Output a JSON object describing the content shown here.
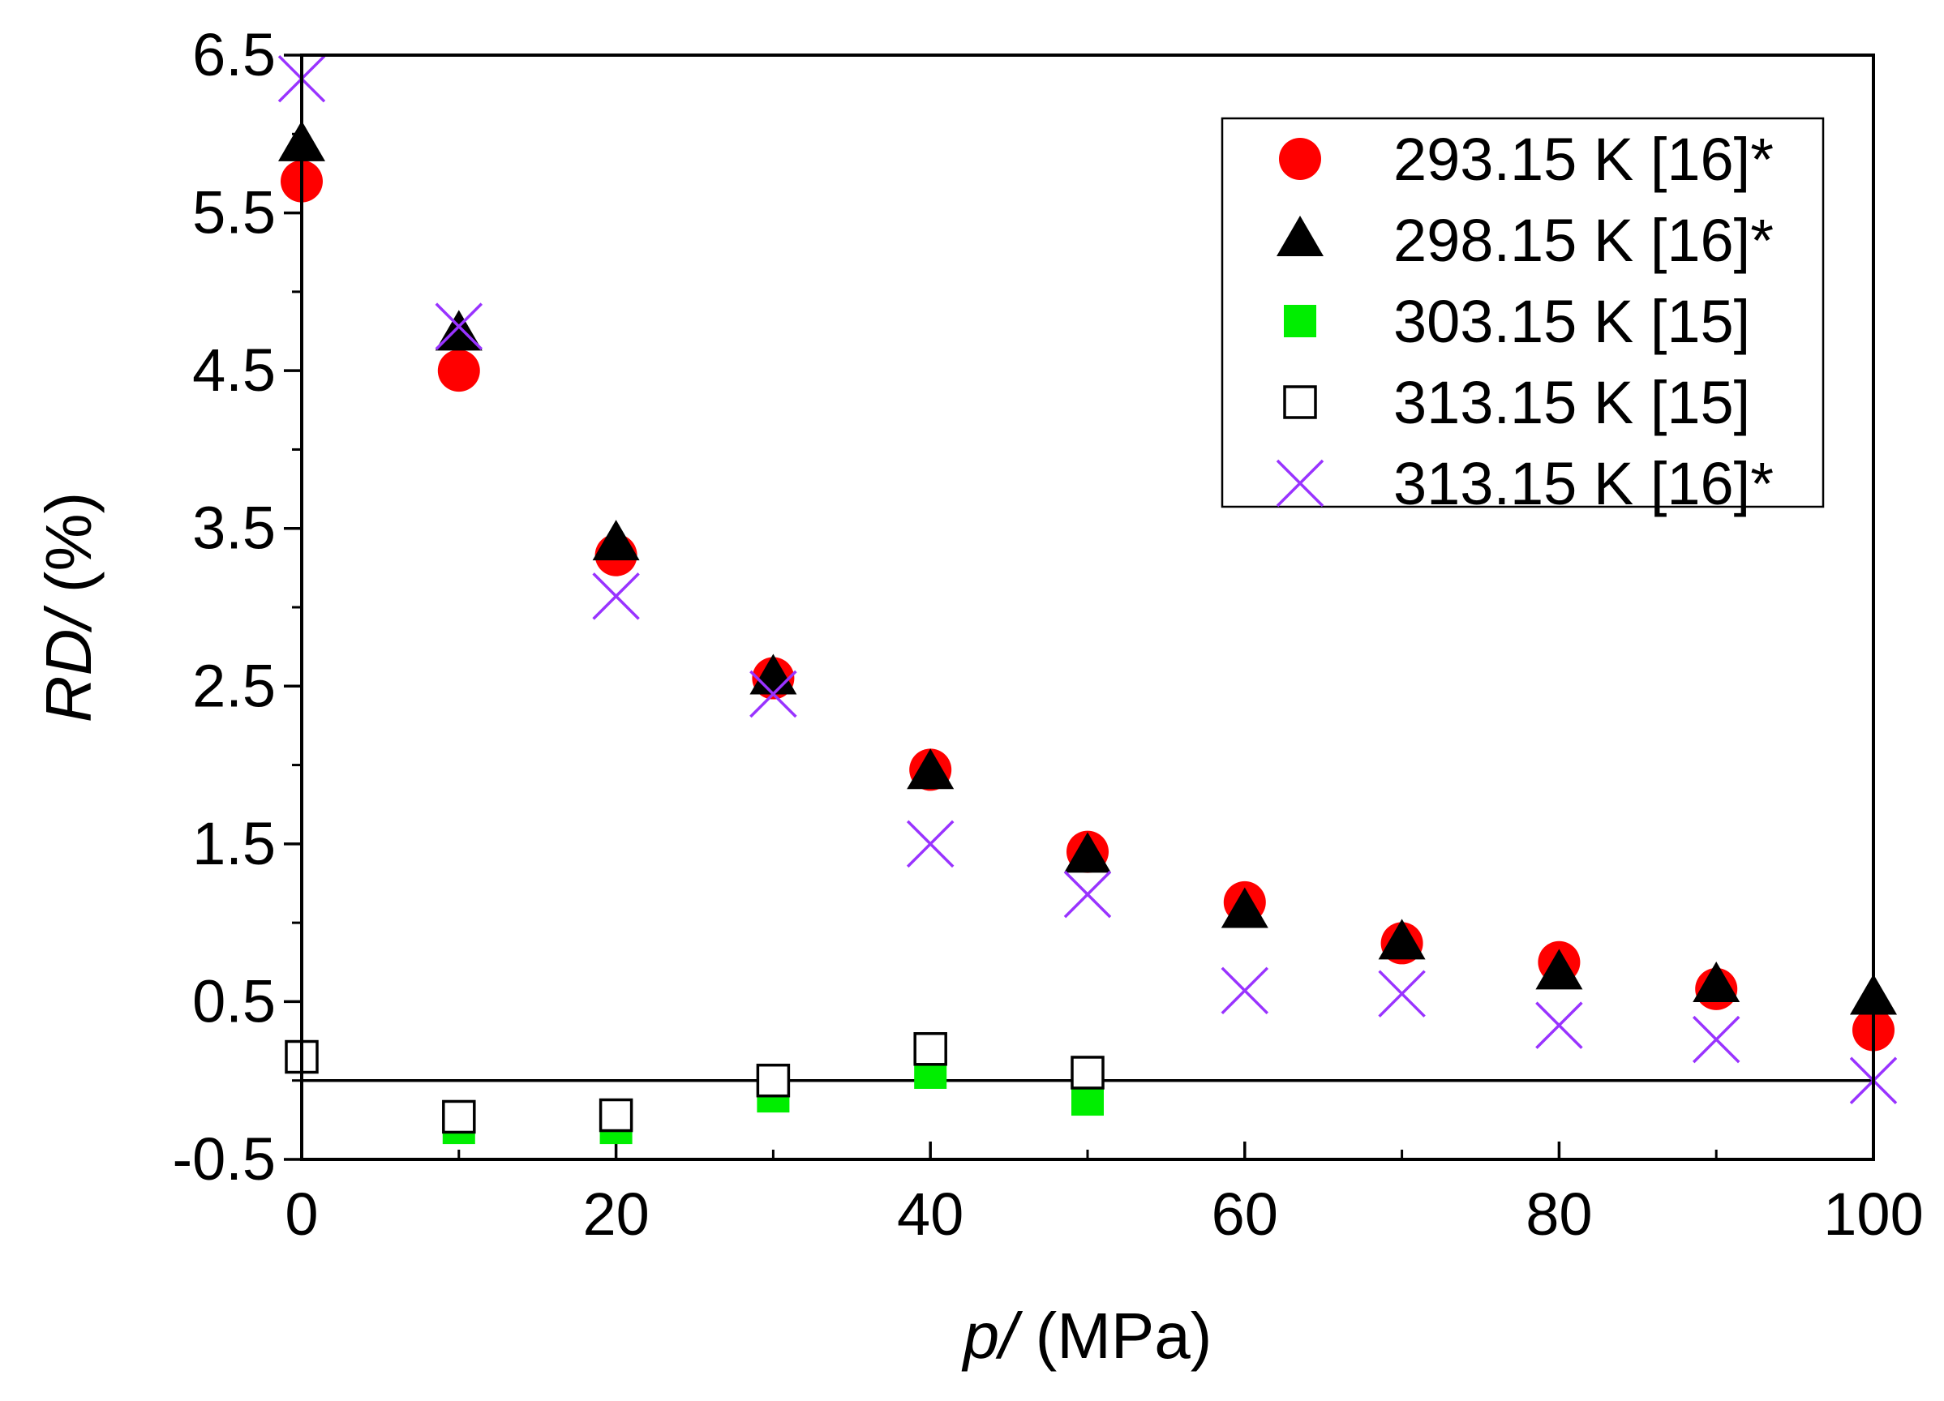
{
  "chart_data": {
    "type": "scatter",
    "title": "",
    "xlabel": {
      "var": "p",
      "unit": " (MPa)"
    },
    "ylabel": {
      "var": "RD",
      "unit": " (%)"
    },
    "xlim": [
      0,
      100
    ],
    "ylim": [
      -0.5,
      6.5
    ],
    "xticks": [
      0,
      20,
      40,
      60,
      80,
      100
    ],
    "xtick_labels": [
      "0",
      "20",
      "40",
      "60",
      "80",
      "100"
    ],
    "yticks": [
      -0.5,
      0.5,
      1.5,
      2.5,
      3.5,
      4.5,
      5.5,
      6.5
    ],
    "ytick_labels": [
      "-0.5",
      "0.5",
      "1.5",
      "2.5",
      "3.5",
      "4.5",
      "5.5",
      "6.5"
    ],
    "reference_line_y": 0,
    "legend_position": "top-right",
    "series": [
      {
        "name": "293.15 K [16]*",
        "marker": "circle",
        "color": "#ff0000",
        "x": [
          0,
          10,
          20,
          30,
          40,
          50,
          60,
          70,
          80,
          90,
          100
        ],
        "y": [
          5.7,
          4.5,
          3.33,
          2.55,
          1.97,
          1.45,
          1.13,
          0.87,
          0.75,
          0.58,
          0.32
        ]
      },
      {
        "name": "298.15 K [16]*",
        "marker": "triangle",
        "color": "#000000",
        "x": [
          0,
          10,
          20,
          30,
          40,
          50,
          60,
          70,
          80,
          90,
          100
        ],
        "y": [
          5.93,
          4.73,
          3.4,
          2.55,
          1.95,
          1.42,
          1.07,
          0.87,
          0.68,
          0.6,
          0.52
        ]
      },
      {
        "name": "303.15 K [15]",
        "marker": "square-filled",
        "color": "#00ee00",
        "x": [
          0,
          10,
          20,
          30,
          40,
          50
        ],
        "y": [
          0.15,
          -0.3,
          -0.3,
          -0.1,
          0.05,
          -0.12
        ]
      },
      {
        "name": "313.15 K [15]",
        "marker": "square-open",
        "color": "#000000",
        "x": [
          0,
          10,
          20,
          30,
          40,
          50
        ],
        "y": [
          0.15,
          -0.23,
          -0.22,
          0.0,
          0.2,
          0.05
        ]
      },
      {
        "name": "313.15 K [16]*",
        "marker": "x",
        "color": "#9933ff",
        "x": [
          0,
          10,
          20,
          30,
          40,
          50,
          60,
          70,
          80,
          90,
          100
        ],
        "y": [
          6.35,
          4.78,
          3.07,
          2.45,
          1.5,
          1.18,
          0.57,
          0.55,
          0.35,
          0.26,
          0.0
        ]
      }
    ]
  }
}
